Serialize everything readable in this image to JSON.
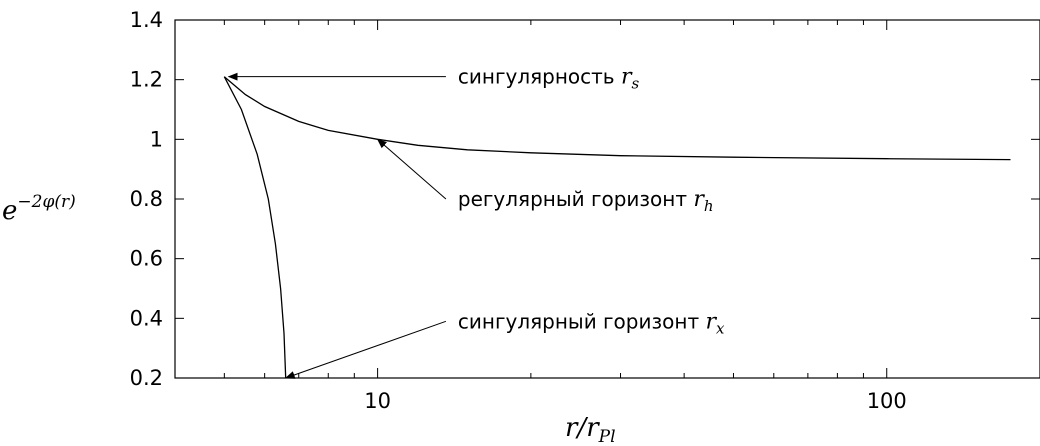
{
  "chart_data": {
    "type": "line",
    "xscale": "log",
    "xlim": [
      4,
      200
    ],
    "ylim": [
      0.2,
      1.4
    ],
    "xticks": [
      10,
      100
    ],
    "xtick_labels": [
      "10",
      "100"
    ],
    "xminor_ticks": [
      5,
      6,
      7,
      8,
      9,
      20,
      30,
      40,
      50,
      60,
      70,
      80,
      90,
      200
    ],
    "yticks": [
      0.2,
      0.4,
      0.6,
      0.8,
      1.0,
      1.2,
      1.4
    ],
    "ytick_labels": [
      "0.2",
      "0.4",
      "0.6",
      "0.8",
      "1",
      "1.2",
      "1.4"
    ],
    "xlabel": {
      "main": "r/r",
      "sub": "Pl"
    },
    "ylabel": {
      "base": "e",
      "sup": "−2φ(r)"
    },
    "grid": false,
    "series": [
      {
        "values": [
          [
            5.0,
            1.21
          ],
          [
            5.5,
            1.15
          ],
          [
            6.0,
            1.11
          ],
          [
            7.0,
            1.06
          ],
          [
            8.0,
            1.03
          ],
          [
            10.0,
            1.0
          ],
          [
            12.0,
            0.98
          ],
          [
            15.0,
            0.965
          ],
          [
            20.0,
            0.955
          ],
          [
            30.0,
            0.945
          ],
          [
            50.0,
            0.94
          ],
          [
            100.0,
            0.935
          ],
          [
            175.0,
            0.932
          ]
        ]
      },
      {
        "values": [
          [
            5.0,
            1.21
          ],
          [
            5.4,
            1.1
          ],
          [
            5.8,
            0.95
          ],
          [
            6.1,
            0.8
          ],
          [
            6.3,
            0.65
          ],
          [
            6.45,
            0.5
          ],
          [
            6.55,
            0.35
          ],
          [
            6.6,
            0.2
          ]
        ]
      }
    ],
    "annotations": [
      {
        "text": "сингулярность",
        "math": "r",
        "sub": "s",
        "point": [
          5.1,
          1.21
        ],
        "label_at": [
          12,
          1.21
        ]
      },
      {
        "text": "регулярный горизонт",
        "math": "r",
        "sub": "h",
        "point": [
          10.0,
          1.0
        ],
        "label_at": [
          12,
          0.8
        ]
      },
      {
        "text": "сингулярный горизонт",
        "math": "r",
        "sub": "x",
        "point": [
          6.6,
          0.2
        ],
        "label_at": [
          12,
          0.39
        ]
      }
    ]
  }
}
